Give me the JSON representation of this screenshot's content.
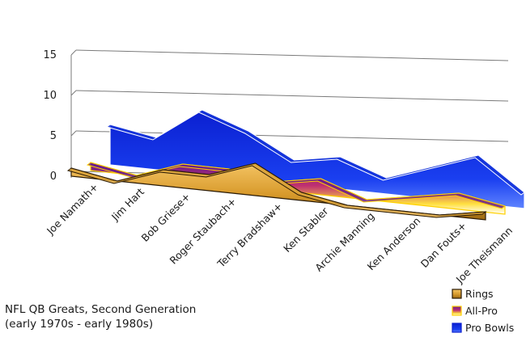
{
  "chart_data": {
    "type": "area",
    "title_lines": [
      "NFL QB Greats, Second Generation",
      "(early 1970s - early 1980s)"
    ],
    "categories": [
      "Joe Namath+",
      "Jim Hart",
      "Bob Griese+",
      "Roger Staubach+",
      "Terry Bradshaw+",
      "Ken Stabler",
      "Archie Manning",
      "Ken Anderson",
      "Dan Fouts+",
      "Joe Theismann"
    ],
    "y_ticks": [
      "0",
      "5",
      "10",
      "15"
    ],
    "ylim": [
      0,
      15
    ],
    "grid": true,
    "legend_position": "bottom-right",
    "series": [
      {
        "name": "Rings",
        "values": [
          1,
          0,
          2,
          2,
          4,
          1,
          0,
          0,
          0,
          1
        ],
        "color": "#d9a23a"
      },
      {
        "name": "All-Pro",
        "values": [
          1,
          0,
          2,
          2,
          1,
          2,
          0,
          1,
          2,
          1
        ],
        "color": "#6a1d8a"
      },
      {
        "name": "Pro Bowls",
        "values": [
          5,
          4,
          8,
          6,
          3,
          4,
          2,
          4,
          6,
          2
        ],
        "color": "#1535d9"
      }
    ]
  }
}
